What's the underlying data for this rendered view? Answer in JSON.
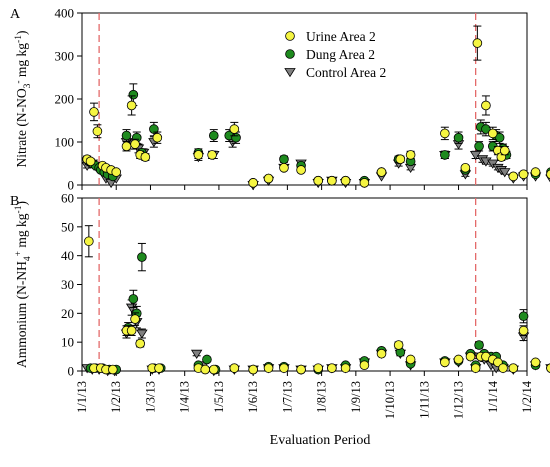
{
  "panels": [
    {
      "id": "nitrate",
      "label": "A",
      "ylabel_parts": [
        "Nitrate (N-NO",
        "3",
        "-",
        " mg kg",
        "-1",
        ")"
      ],
      "ylim": [
        0,
        400
      ],
      "yticks": [
        0,
        100,
        200,
        300,
        400
      ]
    },
    {
      "id": "ammonium",
      "label": "B",
      "ylabel_parts": [
        "Ammonium (N-NH",
        "4",
        "+",
        " mg kg",
        "-1",
        ")"
      ],
      "ylim": [
        0,
        60
      ],
      "yticks": [
        0,
        10,
        20,
        30,
        40,
        50,
        60
      ]
    }
  ],
  "xlabel": "Evaluation Period",
  "xticks": [
    "1/1/13",
    "1/2/13",
    "1/3/13",
    "1/4/13",
    "1/5/13",
    "1/6/13",
    "1/7/13",
    "1/8/13",
    "1/9/13",
    "1/10/13",
    "1/11/13",
    "1/12/13",
    "1/1/14",
    "1/2/14"
  ],
  "vertical_lines": [
    0.5,
    11.5
  ],
  "legend": {
    "placement": "top-right of panel A",
    "entries": [
      {
        "label": "Urine Area 2",
        "marker": "circle",
        "color": "#f5f542"
      },
      {
        "label": "Dung Area 2",
        "marker": "circle",
        "color": "#1e8a1e"
      },
      {
        "label": "Control Area 2",
        "marker": "triangle-down",
        "color": "#808080"
      }
    ]
  },
  "chart_data": [
    {
      "type": "scatter",
      "panel": "A",
      "x_units": "months after 1/1/13",
      "ylim": [
        0,
        400
      ],
      "series": [
        {
          "name": "Urine Area 2",
          "points": [
            [
              0.15,
              60
            ],
            [
              0.25,
              55
            ],
            [
              0.35,
              170
            ],
            [
              0.45,
              125
            ],
            [
              0.6,
              45
            ],
            [
              0.7,
              40
            ],
            [
              0.85,
              35
            ],
            [
              1.0,
              30
            ],
            [
              1.3,
              90
            ],
            [
              1.45,
              185
            ],
            [
              1.55,
              95
            ],
            [
              1.7,
              70
            ],
            [
              1.85,
              65
            ],
            [
              2.2,
              110
            ],
            [
              3.4,
              70
            ],
            [
              3.8,
              70
            ],
            [
              4.45,
              130
            ],
            [
              5.0,
              5
            ],
            [
              5.45,
              15
            ],
            [
              5.9,
              40
            ],
            [
              6.4,
              35
            ],
            [
              6.9,
              10
            ],
            [
              7.3,
              10
            ],
            [
              7.7,
              10
            ],
            [
              8.25,
              5
            ],
            [
              8.75,
              30
            ],
            [
              9.3,
              60
            ],
            [
              9.6,
              70
            ],
            [
              10.6,
              120
            ],
            [
              11.2,
              40
            ],
            [
              11.55,
              330
            ],
            [
              11.8,
              185
            ],
            [
              12.0,
              120
            ],
            [
              12.15,
              80
            ],
            [
              12.25,
              65
            ],
            [
              12.35,
              80
            ],
            [
              12.6,
              20
            ],
            [
              12.9,
              25
            ],
            [
              13.25,
              30
            ],
            [
              13.7,
              25
            ]
          ]
        },
        {
          "name": "Dung Area 2",
          "points": [
            [
              0.2,
              55
            ],
            [
              0.3,
              50
            ],
            [
              0.4,
              45
            ],
            [
              0.5,
              40
            ],
            [
              0.55,
              35
            ],
            [
              0.65,
              30
            ],
            [
              0.75,
              25
            ],
            [
              0.9,
              20
            ],
            [
              1.3,
              115
            ],
            [
              1.5,
              210
            ],
            [
              1.6,
              110
            ],
            [
              1.75,
              75
            ],
            [
              2.1,
              130
            ],
            [
              3.4,
              75
            ],
            [
              3.85,
              115
            ],
            [
              4.3,
              115
            ],
            [
              4.5,
              110
            ],
            [
              5.0,
              5
            ],
            [
              5.45,
              15
            ],
            [
              5.9,
              60
            ],
            [
              6.4,
              45
            ],
            [
              6.9,
              10
            ],
            [
              7.3,
              10
            ],
            [
              7.7,
              10
            ],
            [
              8.25,
              10
            ],
            [
              8.75,
              30
            ],
            [
              9.25,
              60
            ],
            [
              9.6,
              55
            ],
            [
              10.6,
              70
            ],
            [
              11.0,
              110
            ],
            [
              11.2,
              35
            ],
            [
              11.6,
              90
            ],
            [
              11.65,
              135
            ],
            [
              11.8,
              130
            ],
            [
              12.0,
              90
            ],
            [
              12.1,
              115
            ],
            [
              12.2,
              110
            ],
            [
              12.3,
              85
            ],
            [
              12.4,
              70
            ],
            [
              12.6,
              20
            ],
            [
              12.9,
              25
            ],
            [
              13.25,
              25
            ],
            [
              13.7,
              30
            ]
          ]
        },
        {
          "name": "Control Area 2",
          "points": [
            [
              0.15,
              45
            ],
            [
              0.3,
              50
            ],
            [
              0.45,
              40
            ],
            [
              0.55,
              35
            ],
            [
              0.7,
              15
            ],
            [
              0.85,
              5
            ],
            [
              1.0,
              15
            ],
            [
              1.3,
              100
            ],
            [
              1.5,
              95
            ],
            [
              1.65,
              85
            ],
            [
              1.8,
              75
            ],
            [
              2.1,
              100
            ],
            [
              3.4,
              65
            ],
            [
              3.85,
              70
            ],
            [
              4.4,
              100
            ],
            [
              5.0,
              0
            ],
            [
              5.45,
              10
            ],
            [
              5.9,
              40
            ],
            [
              6.4,
              50
            ],
            [
              6.9,
              5
            ],
            [
              7.3,
              10
            ],
            [
              7.7,
              5
            ],
            [
              8.25,
              5
            ],
            [
              8.75,
              20
            ],
            [
              9.25,
              50
            ],
            [
              9.6,
              40
            ],
            [
              10.6,
              70
            ],
            [
              11.0,
              95
            ],
            [
              11.2,
              25
            ],
            [
              11.5,
              70
            ],
            [
              11.7,
              60
            ],
            [
              11.8,
              55
            ],
            [
              12.0,
              50
            ],
            [
              12.15,
              40
            ],
            [
              12.25,
              35
            ],
            [
              12.35,
              30
            ],
            [
              12.6,
              15
            ],
            [
              12.9,
              20
            ],
            [
              13.25,
              20
            ],
            [
              13.7,
              15
            ]
          ]
        }
      ]
    },
    {
      "type": "scatter",
      "panel": "B",
      "x_units": "months after 1/1/13",
      "ylim": [
        0,
        60
      ],
      "series": [
        {
          "name": "Urine Area 2",
          "points": [
            [
              0.2,
              45
            ],
            [
              0.35,
              1
            ],
            [
              0.55,
              1
            ],
            [
              0.7,
              0.5
            ],
            [
              0.9,
              0.5
            ],
            [
              1.3,
              14
            ],
            [
              1.45,
              14
            ],
            [
              1.55,
              18
            ],
            [
              1.7,
              9.5
            ],
            [
              2.05,
              1
            ],
            [
              2.25,
              1
            ],
            [
              3.4,
              1
            ],
            [
              3.6,
              0.5
            ],
            [
              3.85,
              0.5
            ],
            [
              4.45,
              1
            ],
            [
              5.0,
              0.5
            ],
            [
              5.45,
              1
            ],
            [
              5.9,
              1
            ],
            [
              6.4,
              0.5
            ],
            [
              6.9,
              1
            ],
            [
              7.3,
              1
            ],
            [
              7.7,
              1
            ],
            [
              8.25,
              2
            ],
            [
              8.75,
              6
            ],
            [
              9.25,
              9
            ],
            [
              9.6,
              4
            ],
            [
              10.6,
              3
            ],
            [
              11.0,
              4
            ],
            [
              11.35,
              5
            ],
            [
              11.5,
              1
            ],
            [
              11.65,
              5
            ],
            [
              11.8,
              5
            ],
            [
              12.0,
              4
            ],
            [
              12.15,
              3
            ],
            [
              12.3,
              1
            ],
            [
              12.6,
              1
            ],
            [
              12.9,
              14
            ],
            [
              13.25,
              3
            ],
            [
              13.7,
              1
            ]
          ]
        },
        {
          "name": "Dung Area 2",
          "points": [
            [
              0.25,
              1
            ],
            [
              0.4,
              1
            ],
            [
              0.6,
              1
            ],
            [
              0.8,
              0.5
            ],
            [
              1.0,
              0.5
            ],
            [
              1.35,
              15
            ],
            [
              1.5,
              25
            ],
            [
              1.6,
              20
            ],
            [
              1.75,
              39.5
            ],
            [
              2.1,
              1
            ],
            [
              2.3,
              1
            ],
            [
              3.4,
              2
            ],
            [
              3.65,
              4
            ],
            [
              3.9,
              0.5
            ],
            [
              4.45,
              1
            ],
            [
              5.0,
              0.5
            ],
            [
              5.45,
              1.5
            ],
            [
              5.9,
              1.5
            ],
            [
              6.4,
              0.5
            ],
            [
              6.9,
              0.5
            ],
            [
              7.3,
              1
            ],
            [
              7.7,
              2
            ],
            [
              8.25,
              3.5
            ],
            [
              8.75,
              7
            ],
            [
              9.3,
              6.5
            ],
            [
              9.6,
              2.5
            ],
            [
              10.6,
              3.5
            ],
            [
              11.0,
              3.5
            ],
            [
              11.35,
              6
            ],
            [
              11.5,
              2
            ],
            [
              11.6,
              9
            ],
            [
              11.75,
              6
            ],
            [
              11.95,
              5
            ],
            [
              12.1,
              5
            ],
            [
              12.3,
              2
            ],
            [
              12.6,
              1
            ],
            [
              12.9,
              19
            ],
            [
              13.25,
              2
            ],
            [
              13.7,
              1
            ]
          ]
        },
        {
          "name": "Control Area 2",
          "points": [
            [
              0.15,
              1
            ],
            [
              0.3,
              0.5
            ],
            [
              0.5,
              0.5
            ],
            [
              0.75,
              0
            ],
            [
              0.95,
              0
            ],
            [
              1.3,
              13
            ],
            [
              1.45,
              22
            ],
            [
              1.6,
              17
            ],
            [
              1.75,
              13
            ],
            [
              2.05,
              0.5
            ],
            [
              2.25,
              0.5
            ],
            [
              3.35,
              6
            ],
            [
              3.55,
              2
            ],
            [
              3.85,
              0
            ],
            [
              4.45,
              0.5
            ],
            [
              5.0,
              0.5
            ],
            [
              5.45,
              1
            ],
            [
              5.9,
              1
            ],
            [
              6.4,
              0.5
            ],
            [
              6.9,
              0.5
            ],
            [
              7.3,
              1
            ],
            [
              7.7,
              1
            ],
            [
              8.25,
              3
            ],
            [
              8.75,
              6
            ],
            [
              9.3,
              6
            ],
            [
              9.6,
              2
            ],
            [
              10.6,
              3
            ],
            [
              11.0,
              3
            ],
            [
              11.35,
              5
            ],
            [
              11.5,
              1
            ],
            [
              11.6,
              5
            ],
            [
              11.75,
              4
            ],
            [
              11.95,
              2
            ],
            [
              12.1,
              1
            ],
            [
              12.3,
              1
            ],
            [
              12.6,
              0.5
            ],
            [
              12.9,
              12
            ],
            [
              13.25,
              2
            ],
            [
              13.7,
              1
            ]
          ]
        }
      ]
    }
  ]
}
